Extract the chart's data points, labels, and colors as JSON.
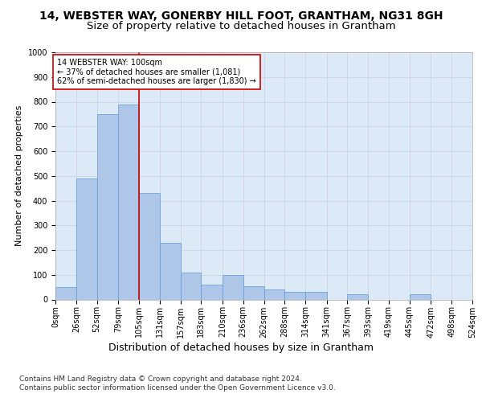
{
  "title1": "14, WEBSTER WAY, GONERBY HILL FOOT, GRANTHAM, NG31 8GH",
  "title2": "Size of property relative to detached houses in Grantham",
  "xlabel": "Distribution of detached houses by size in Grantham",
  "ylabel": "Number of detached properties",
  "bar_edges": [
    0,
    26,
    52,
    79,
    105,
    131,
    157,
    183,
    210,
    236,
    262,
    288,
    314,
    341,
    367,
    393,
    419,
    445,
    472,
    498,
    524
  ],
  "bar_heights": [
    50,
    490,
    750,
    790,
    430,
    230,
    110,
    60,
    100,
    55,
    40,
    30,
    30,
    0,
    20,
    0,
    0,
    20,
    0,
    0
  ],
  "bar_color": "#aec6e8",
  "bar_edgecolor": "#5b9bd5",
  "grid_color": "#d0d8e8",
  "background_color": "#dce9f7",
  "property_line_x": 105,
  "property_line_color": "#cc0000",
  "annotation_text": "14 WEBSTER WAY: 100sqm\n← 37% of detached houses are smaller (1,081)\n62% of semi-detached houses are larger (1,830) →",
  "annotation_box_color": "#ffffff",
  "annotation_box_edgecolor": "#cc0000",
  "ylim": [
    0,
    1000
  ],
  "yticks": [
    0,
    100,
    200,
    300,
    400,
    500,
    600,
    700,
    800,
    900,
    1000
  ],
  "tick_labels": [
    "0sqm",
    "26sqm",
    "52sqm",
    "79sqm",
    "105sqm",
    "131sqm",
    "157sqm",
    "183sqm",
    "210sqm",
    "236sqm",
    "262sqm",
    "288sqm",
    "314sqm",
    "341sqm",
    "367sqm",
    "393sqm",
    "419sqm",
    "445sqm",
    "472sqm",
    "498sqm",
    "524sqm"
  ],
  "footer_text": "Contains HM Land Registry data © Crown copyright and database right 2024.\nContains public sector information licensed under the Open Government Licence v3.0.",
  "title1_fontsize": 10,
  "title2_fontsize": 9.5,
  "xlabel_fontsize": 9,
  "ylabel_fontsize": 8,
  "tick_fontsize": 7,
  "footer_fontsize": 6.5
}
